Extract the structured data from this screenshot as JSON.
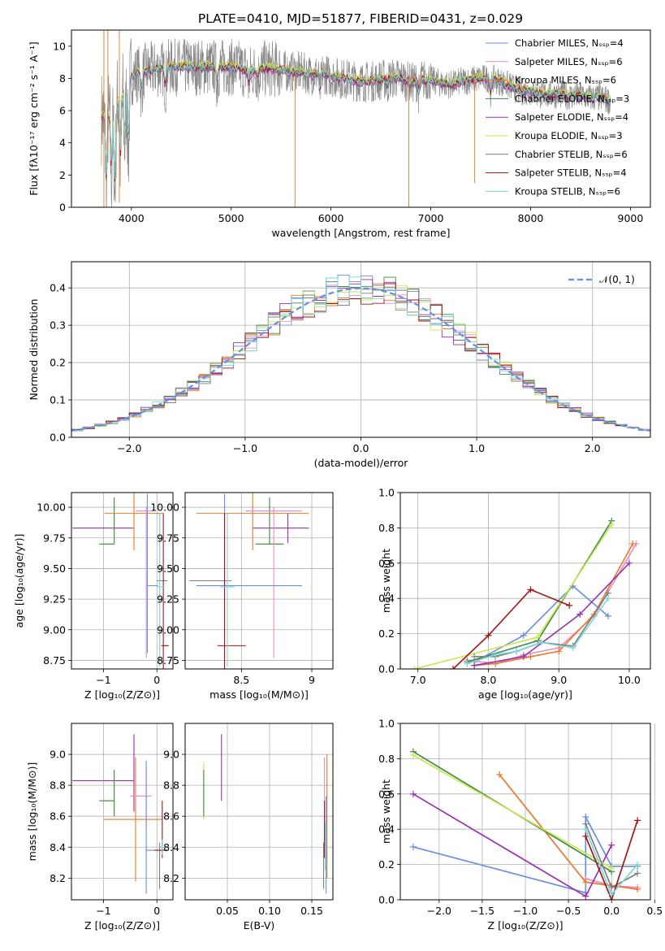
{
  "figure_title": "PLATE=0410, MJD=51877, FIBERID=0431, z=0.029",
  "colors": {
    "chabrier_miles": "#6a8fdf",
    "salpeter_miles": "#e98cc2",
    "kroupa_miles": "#e8792c",
    "chabrier_elodie": "#3f8a4a",
    "salpeter_elodie": "#9b2fae",
    "kroupa_elodie": "#c6e84a",
    "chabrier_stelib": "#7f7f7f",
    "salpeter_stelib": "#a31515",
    "kroupa_stelib": "#79d8d8"
  },
  "chart_data": [
    {
      "id": "spectrum",
      "type": "line",
      "xlabel": "wavelength [Angstrom, rest frame]",
      "ylabel": "Flux [fλ10⁻¹⁷ erg cm⁻² s⁻¹ A⁻¹]",
      "xlim": [
        3400,
        9200
      ],
      "ylim": [
        0,
        11
      ],
      "xticks": [
        4000,
        5000,
        6000,
        7000,
        8000,
        9000
      ],
      "yticks": [
        0,
        2,
        4,
        6,
        8,
        10
      ],
      "legend_position": "top-right",
      "series": [
        {
          "name": "Chabrier MILES, Nₛₛₚ=4"
        },
        {
          "name": "Salpeter MILES, Nₛₛₚ=6"
        },
        {
          "name": "Kroupa MILES, Nₛₛₚ=6"
        },
        {
          "name": "Chabrier ELODIE, Nₛₛₚ=3"
        },
        {
          "name": "Salpeter ELODIE, Nₛₛₚ=4"
        },
        {
          "name": "Kroupa ELODIE, Nₛₛₚ=3"
        },
        {
          "name": "Chabrier STELIB, Nₛₛₚ=6"
        },
        {
          "name": "Salpeter STELIB, Nₛₛₚ=4"
        },
        {
          "name": "Kroupa STELIB, Nₛₛₚ=6"
        }
      ],
      "continuum": {
        "x": [
          3700,
          3800,
          3900,
          4000,
          4100,
          4200,
          4300,
          4400,
          4500,
          4600,
          4700,
          4800,
          4900,
          5000,
          5100,
          5200,
          5300,
          5400,
          5500,
          5600,
          5700,
          5800,
          5900,
          6000,
          6100,
          6200,
          6300,
          6400,
          6500,
          6600,
          6700,
          6800,
          6900,
          7000,
          7100,
          7200,
          7300,
          7400,
          7500,
          7600,
          7700,
          7800,
          7900,
          8000,
          8100,
          8200,
          8300,
          8400,
          8500,
          8600,
          8700,
          8800
        ],
        "y": [
          5.6,
          5.9,
          7.2,
          8.1,
          8.4,
          8.5,
          8.6,
          8.7,
          8.7,
          8.7,
          8.7,
          8.7,
          8.7,
          8.7,
          8.6,
          8.4,
          8.6,
          8.6,
          8.5,
          8.4,
          8.4,
          8.2,
          8.4,
          8.1,
          8.0,
          7.9,
          7.8,
          7.8,
          7.9,
          8.0,
          8.0,
          7.7,
          7.9,
          7.9,
          7.7,
          7.6,
          7.8,
          7.9,
          8.0,
          8.0,
          7.8,
          7.5,
          7.2,
          7.2,
          7.0,
          7.0,
          7.0,
          6.9,
          6.9,
          6.8,
          6.8,
          6.6
        ]
      }
    },
    {
      "id": "residuals",
      "type": "bar",
      "xlabel": "(data-model)/error",
      "ylabel": "Normed distribution",
      "xlim": [
        -2.5,
        2.5
      ],
      "ylim": [
        0,
        0.47
      ],
      "xticks": [
        -2,
        -1,
        0,
        1,
        2
      ],
      "yticks": [
        0.0,
        0.1,
        0.2,
        0.3,
        0.4
      ],
      "legend_position": "top-right",
      "legend_label": "𝒩(0, 1)",
      "bin_width": 0.1,
      "gaussian": {
        "mu": 0,
        "sigma": 1
      }
    },
    {
      "id": "age_vs_Z",
      "type": "scatter",
      "xlabel": "Z [log₁₀(Z/Z⊙)]",
      "ylabel": "age  [log₁₀(age/yr)]",
      "xlim": [
        -1.6,
        0.3
      ],
      "ylim": [
        8.68,
        10.12
      ],
      "xticks": [
        -1,
        0
      ],
      "yticks": [
        8.75,
        9.0,
        9.25,
        9.5,
        9.75,
        10.0
      ],
      "points": [
        {
          "series": "salpeter_elodie",
          "x": -0.43,
          "y": 9.83,
          "xerr": [
            1.15,
            0.0
          ],
          "yerr": [
            0.0,
            0.0
          ]
        },
        {
          "series": "kroupa_elodie",
          "x": -0.8,
          "y": 9.7,
          "xerr": [
            0.2,
            0.0
          ],
          "yerr": [
            0.0,
            0.38
          ]
        },
        {
          "series": "chabrier_elodie",
          "x": -0.8,
          "y": 9.7,
          "xerr": [
            0.28,
            0.0
          ],
          "yerr": [
            0.0,
            0.38
          ]
        },
        {
          "series": "kroupa_miles",
          "x": -0.43,
          "y": 9.95,
          "xerr": [
            0.55,
            0.55
          ],
          "yerr": [
            0.3,
            0.2
          ]
        },
        {
          "series": "salpeter_miles",
          "x": -0.2,
          "y": 9.97,
          "xerr": [
            0.2,
            0.1
          ],
          "yerr": [
            1.2,
            0.03
          ]
        },
        {
          "series": "chabrier_miles",
          "x": -0.18,
          "y": 9.36,
          "xerr": [
            0.0,
            0.2
          ],
          "yerr": [
            0.55,
            0.75
          ]
        },
        {
          "series": "chabrier_stelib",
          "x": 0.05,
          "y": 9.4,
          "xerr": [
            0.05,
            0.15
          ],
          "yerr": [
            0.7,
            0.55
          ]
        },
        {
          "series": "salpeter_stelib",
          "x": 0.12,
          "y": 8.87,
          "xerr": [
            0.04,
            0.1
          ],
          "yerr": [
            0.2,
            1.08
          ]
        },
        {
          "series": "kroupa_stelib",
          "x": 0.05,
          "y": 9.35,
          "xerr": [
            0.05,
            0.1
          ],
          "yerr": [
            0.65,
            0.6
          ]
        }
      ]
    },
    {
      "id": "age_vs_mass",
      "type": "scatter",
      "xlabel": "mass [log₁₀(M/M⊙)]",
      "xlim": [
        8.1,
        9.15
      ],
      "ylim": [
        8.68,
        10.12
      ],
      "xticks": [
        8.5,
        9.0
      ],
      "yticks": [
        8.75,
        9.0,
        9.25,
        9.5,
        9.75,
        10.0
      ],
      "points": [
        {
          "series": "salpeter_elodie",
          "x": 8.83,
          "y": 9.83,
          "xerr": [
            0.25,
            0.15
          ],
          "yerr": [
            0.12,
            0.12
          ]
        },
        {
          "series": "kroupa_elodie",
          "x": 8.7,
          "y": 9.7,
          "xerr": [
            0.1,
            0.1
          ],
          "yerr": [
            0.0,
            0.38
          ]
        },
        {
          "series": "chabrier_elodie",
          "x": 8.7,
          "y": 9.7,
          "xerr": [
            0.1,
            0.1
          ],
          "yerr": [
            0.0,
            0.38
          ]
        },
        {
          "series": "kroupa_miles",
          "x": 8.58,
          "y": 9.95,
          "xerr": [
            0.4,
            0.4
          ],
          "yerr": [
            0.3,
            0.2
          ]
        },
        {
          "series": "salpeter_miles",
          "x": 8.73,
          "y": 9.97,
          "xerr": [
            0.2,
            0.2
          ],
          "yerr": [
            1.2,
            0.03
          ]
        },
        {
          "series": "chabrier_miles",
          "x": 8.38,
          "y": 9.36,
          "xerr": [
            0.2,
            0.55
          ],
          "yerr": [
            0.0,
            0.75
          ]
        },
        {
          "series": "chabrier_stelib",
          "x": 8.38,
          "y": 9.4,
          "xerr": [
            0.25,
            0.05
          ],
          "yerr": [
            0.7,
            0.55
          ]
        },
        {
          "series": "salpeter_stelib",
          "x": 8.38,
          "y": 8.87,
          "xerr": [
            0.05,
            0.15
          ],
          "yerr": [
            0.2,
            1.08
          ]
        },
        {
          "series": "kroupa_stelib",
          "x": 8.4,
          "y": 9.35,
          "xerr": [
            0.05,
            0.05
          ],
          "yerr": [
            0.65,
            0.6
          ]
        }
      ]
    },
    {
      "id": "mass_vs_Z",
      "type": "scatter",
      "xlabel": "Z [log₁₀(Z/Z⊙)]",
      "ylabel": "mass [log₁₀(M/M⊙)]",
      "xlim": [
        -1.6,
        0.3
      ],
      "ylim": [
        8.06,
        9.2
      ],
      "xticks": [
        -1,
        0
      ],
      "yticks": [
        8.2,
        8.4,
        8.6,
        8.8,
        9.0
      ],
      "points": [
        {
          "series": "salpeter_elodie",
          "x": -0.43,
          "y": 8.83,
          "xerr": [
            1.15,
            0.0
          ],
          "yerr": [
            0.2,
            0.3
          ]
        },
        {
          "series": "kroupa_elodie",
          "x": -0.8,
          "y": 8.7,
          "xerr": [
            0.2,
            0.0
          ],
          "yerr": [
            0.1,
            0.2
          ]
        },
        {
          "series": "chabrier_elodie",
          "x": -0.8,
          "y": 8.7,
          "xerr": [
            0.28,
            0.0
          ],
          "yerr": [
            0.1,
            0.2
          ]
        },
        {
          "series": "kroupa_miles",
          "x": -0.4,
          "y": 8.58,
          "xerr": [
            0.6,
            0.5
          ],
          "yerr": [
            0.4,
            0.4
          ]
        },
        {
          "series": "salpeter_miles",
          "x": -0.2,
          "y": 8.73,
          "xerr": [
            0.3,
            0.1
          ],
          "yerr": [
            0.2,
            0.2
          ]
        },
        {
          "series": "chabrier_miles",
          "x": -0.2,
          "y": 8.38,
          "xerr": [
            0.0,
            0.25
          ],
          "yerr": [
            0.28,
            0.58
          ]
        },
        {
          "series": "chabrier_stelib",
          "x": 0.05,
          "y": 8.38,
          "xerr": [
            0.0,
            0.15
          ],
          "yerr": [
            0.25,
            0.05
          ]
        },
        {
          "series": "salpeter_stelib",
          "x": 0.1,
          "y": 8.38,
          "xerr": [
            0.15,
            0.1
          ],
          "yerr": [
            0.05,
            0.32
          ]
        },
        {
          "series": "kroupa_stelib",
          "x": 0.1,
          "y": 8.4,
          "xerr": [
            0.05,
            0.1
          ],
          "yerr": [
            0.05,
            0.05
          ]
        }
      ]
    },
    {
      "id": "mass_vs_ebv",
      "type": "scatter",
      "xlabel": "E(B-V)",
      "xlim": [
        0.0,
        0.175
      ],
      "ylim": [
        8.06,
        9.2
      ],
      "xticks": [
        0.05,
        0.1,
        0.15
      ],
      "yticks": [
        8.2,
        8.4,
        8.6,
        8.8,
        9.0
      ],
      "points": [
        {
          "series": "salpeter_elodie",
          "x": 0.043,
          "y": 8.83,
          "xerr": [
            0,
            0
          ],
          "yerr": [
            0.13,
            0.3
          ]
        },
        {
          "series": "kroupa_elodie",
          "x": 0.022,
          "y": 8.7,
          "xerr": [
            0,
            0
          ],
          "yerr": [
            0.12,
            0.25
          ]
        },
        {
          "series": "chabrier_elodie",
          "x": 0.022,
          "y": 8.7,
          "xerr": [
            0,
            0
          ],
          "yerr": [
            0.1,
            0.2
          ]
        },
        {
          "series": "kroupa_miles",
          "x": 0.168,
          "y": 8.58,
          "xerr": [
            0,
            0
          ],
          "yerr": [
            0.38,
            0.42
          ]
        },
        {
          "series": "salpeter_miles",
          "x": 0.165,
          "y": 8.73,
          "xerr": [
            0,
            0
          ],
          "yerr": [
            0.33,
            0.25
          ]
        },
        {
          "series": "chabrier_miles",
          "x": 0.167,
          "y": 8.38,
          "xerr": [
            0,
            0
          ],
          "yerr": [
            0.28,
            0.35
          ]
        },
        {
          "series": "chabrier_stelib",
          "x": 0.164,
          "y": 8.38,
          "xerr": [
            0,
            0
          ],
          "yerr": [
            0.25,
            0.05
          ]
        },
        {
          "series": "salpeter_stelib",
          "x": 0.165,
          "y": 8.38,
          "xerr": [
            0,
            0
          ],
          "yerr": [
            0.05,
            0.32
          ]
        },
        {
          "series": "kroupa_stelib",
          "x": 0.166,
          "y": 8.4,
          "xerr": [
            0,
            0
          ],
          "yerr": [
            0.15,
            0.15
          ]
        }
      ]
    },
    {
      "id": "weight_vs_age",
      "type": "line",
      "xlabel": "age  [log₁₀(age/yr)]",
      "ylabel": "mass weight",
      "xlim": [
        6.75,
        10.3
      ],
      "ylim": [
        0,
        1
      ],
      "xticks": [
        7,
        8,
        9,
        10
      ],
      "yticks": [
        0.0,
        0.2,
        0.4,
        0.6,
        0.8,
        1.0
      ],
      "series": [
        {
          "key": "chabrier_miles",
          "x": [
            7.8,
            8.5,
            9.2,
            9.7
          ],
          "y": [
            0.04,
            0.19,
            0.47,
            0.3
          ]
        },
        {
          "key": "salpeter_miles",
          "x": [
            7.7,
            8.1,
            8.5,
            9.0,
            9.5,
            10.1
          ],
          "y": [
            0.05,
            0.03,
            0.08,
            0.12,
            0.3,
            0.71
          ]
        },
        {
          "key": "kroupa_miles",
          "x": [
            7.8,
            8.1,
            8.6,
            9.0,
            9.5,
            10.05
          ],
          "y": [
            0.02,
            0.03,
            0.07,
            0.1,
            0.31,
            0.71
          ]
        },
        {
          "key": "chabrier_elodie",
          "x": [
            7.7,
            8.7,
            9.75
          ],
          "y": [
            0.04,
            0.16,
            0.84
          ]
        },
        {
          "key": "salpeter_elodie",
          "x": [
            7.8,
            8.5,
            9.3,
            10.0
          ],
          "y": [
            0.02,
            0.07,
            0.31,
            0.6
          ]
        },
        {
          "key": "kroupa_elodie",
          "x": [
            6.95,
            8.7,
            9.75
          ],
          "y": [
            0.0,
            0.18,
            0.82
          ]
        },
        {
          "key": "chabrier_stelib",
          "x": [
            7.8,
            8.1,
            8.4,
            8.75,
            9.2,
            9.7
          ],
          "y": [
            0.07,
            0.07,
            0.1,
            0.15,
            0.13,
            0.43
          ]
        },
        {
          "key": "salpeter_stelib",
          "x": [
            7.5,
            8.0,
            8.6,
            9.15
          ],
          "y": [
            0.0,
            0.19,
            0.45,
            0.36
          ]
        },
        {
          "key": "kroupa_stelib",
          "x": [
            7.7,
            8.1,
            8.4,
            8.75,
            9.2,
            9.7
          ],
          "y": [
            0.03,
            0.08,
            0.1,
            0.15,
            0.12,
            0.4
          ]
        }
      ]
    },
    {
      "id": "weight_vs_Z",
      "type": "line",
      "xlabel": "Z [log₁₀(Z/Z⊙)]",
      "ylabel": "mass weight",
      "xlim": [
        -2.45,
        0.45
      ],
      "ylim": [
        0,
        1
      ],
      "xticks": [
        -2.0,
        -1.5,
        -1.0,
        -0.5,
        0.0,
        0.5
      ],
      "yticks": [
        0.0,
        0.2,
        0.4,
        0.6,
        0.8,
        1.0
      ],
      "series": [
        {
          "key": "chabrier_miles",
          "x": [
            -2.3,
            -0.3,
            -0.3,
            0.0,
            0.3
          ],
          "y": [
            0.3,
            0.04,
            0.47,
            0.19,
            0.19
          ]
        },
        {
          "key": "salpeter_miles",
          "x": [
            -0.3,
            0.0,
            0.3
          ],
          "y": [
            0.12,
            0.08,
            0.07
          ]
        },
        {
          "key": "kroupa_miles",
          "x": [
            -1.3,
            -0.3,
            0.0,
            0.3
          ],
          "y": [
            0.71,
            0.1,
            0.08,
            0.06
          ]
        },
        {
          "key": "chabrier_elodie",
          "x": [
            -2.3,
            0.0
          ],
          "y": [
            0.84,
            0.16
          ]
        },
        {
          "key": "salpeter_elodie",
          "x": [
            -2.3,
            -0.3,
            0.0
          ],
          "y": [
            0.6,
            0.02,
            0.31
          ]
        },
        {
          "key": "kroupa_elodie",
          "x": [
            -2.3,
            0.0
          ],
          "y": [
            0.82,
            0.18
          ]
        },
        {
          "key": "chabrier_stelib",
          "x": [
            -0.3,
            0.0,
            0.3
          ],
          "y": [
            0.43,
            0.07,
            0.15
          ]
        },
        {
          "key": "salpeter_stelib",
          "x": [
            -0.3,
            0.0,
            0.3
          ],
          "y": [
            0.36,
            0.0,
            0.45
          ]
        },
        {
          "key": "kroupa_stelib",
          "x": [
            -0.3,
            0.0,
            0.3
          ],
          "y": [
            0.4,
            0.03,
            0.2
          ]
        }
      ]
    }
  ]
}
